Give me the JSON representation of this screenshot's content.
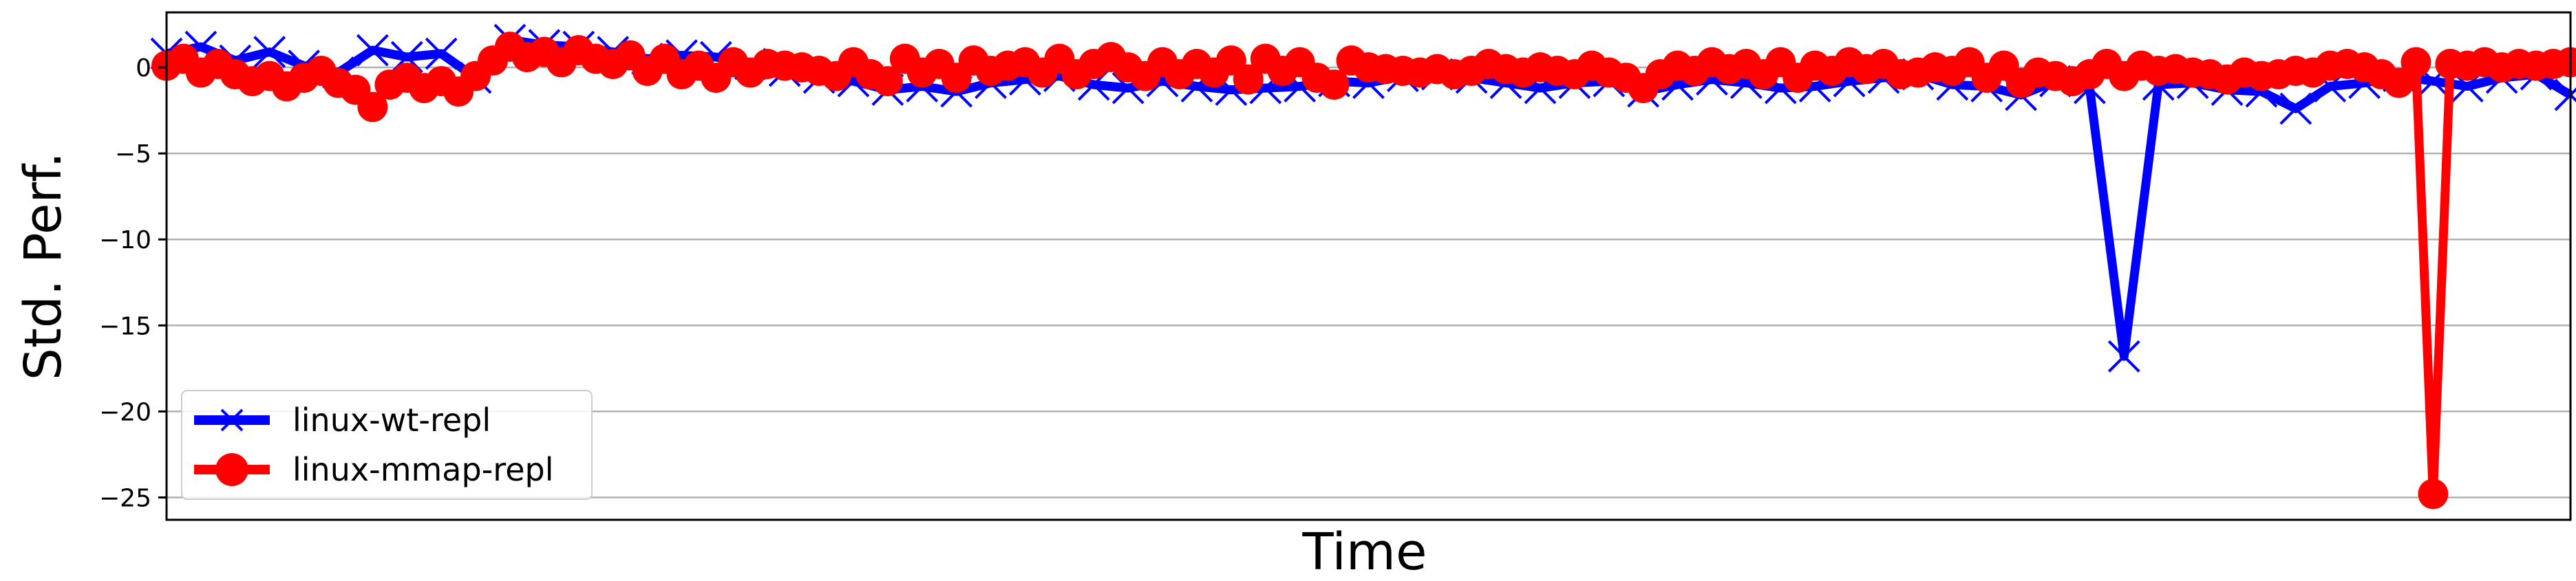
{
  "chart_data": {
    "type": "line",
    "title": "",
    "xlabel": "Time",
    "ylabel": "Std. Perf.",
    "ylim": [
      -26.3,
      3.2
    ],
    "yticks": [
      0,
      -5,
      -10,
      -15,
      -20,
      -25
    ],
    "ytick_labels": [
      "0",
      "−5",
      "−10",
      "−15",
      "−20",
      "−25"
    ],
    "grid": "horizontal",
    "legend_position": "lower-left",
    "x_count": 140,
    "series": [
      {
        "name": "linux-wt-repl",
        "color": "#0000ff",
        "marker": "x",
        "x": [
          0,
          2,
          4,
          6,
          8,
          10,
          12,
          14,
          16,
          18,
          20,
          22,
          24,
          26,
          28,
          30,
          32,
          34,
          36,
          38,
          40,
          42,
          44,
          46,
          48,
          50,
          52,
          54,
          56,
          58,
          60,
          62,
          64,
          66,
          68,
          70,
          72,
          74,
          76,
          78,
          80,
          82,
          84,
          86,
          88,
          90,
          92,
          94,
          96,
          98,
          100,
          102,
          104,
          106,
          108,
          110,
          112,
          114,
          116,
          118,
          120,
          122,
          124,
          126,
          128,
          130,
          132,
          134,
          136,
          138,
          140
        ],
        "values": [
          0.8,
          1.2,
          0.4,
          0.9,
          0.1,
          -0.3,
          1.0,
          0.6,
          0.8,
          -0.6,
          1.6,
          1.3,
          1.2,
          0.9,
          0.5,
          0.7,
          0.6,
          0.2,
          -0.2,
          -0.6,
          -0.8,
          -1.3,
          -1.1,
          -1.4,
          -0.9,
          -0.7,
          -0.5,
          -1.0,
          -1.2,
          -0.8,
          -1.1,
          -1.3,
          -1.2,
          -1.1,
          -0.8,
          -0.9,
          -0.5,
          -0.4,
          -0.6,
          -0.9,
          -1.2,
          -0.9,
          -0.8,
          -1.4,
          -1.0,
          -0.7,
          -0.9,
          -1.2,
          -1.1,
          -0.8,
          -0.6,
          -0.4,
          -1.0,
          -1.1,
          -1.6,
          -0.8,
          -1.2,
          -16.8,
          -1.0,
          -0.9,
          -1.3,
          -1.4,
          -2.4,
          -1.1,
          -0.9,
          -0.5,
          -0.8,
          -1.1,
          -0.6,
          -0.4,
          -1.6
        ]
      },
      {
        "name": "linux-mmap-repl",
        "color": "#ff0000",
        "marker": "o",
        "x": [
          0,
          1,
          2,
          3,
          4,
          5,
          6,
          7,
          8,
          9,
          10,
          11,
          12,
          13,
          14,
          15,
          16,
          17,
          18,
          19,
          20,
          21,
          22,
          23,
          24,
          25,
          26,
          27,
          28,
          29,
          30,
          31,
          32,
          33,
          34,
          35,
          36,
          37,
          38,
          39,
          40,
          41,
          42,
          43,
          44,
          45,
          46,
          47,
          48,
          49,
          50,
          51,
          52,
          53,
          54,
          55,
          56,
          57,
          58,
          59,
          60,
          61,
          62,
          63,
          64,
          65,
          66,
          67,
          68,
          69,
          70,
          71,
          72,
          73,
          74,
          75,
          76,
          77,
          78,
          79,
          80,
          81,
          82,
          83,
          84,
          85,
          86,
          87,
          88,
          89,
          90,
          91,
          92,
          93,
          94,
          95,
          96,
          97,
          98,
          99,
          100,
          101,
          102,
          103,
          104,
          105,
          106,
          107,
          108,
          109,
          110,
          111,
          112,
          113,
          114,
          115,
          116,
          117,
          118,
          119,
          120,
          121,
          122,
          123,
          124,
          125,
          126,
          127,
          128,
          129,
          130,
          131,
          132,
          133,
          134,
          135,
          136,
          137,
          138,
          139,
          140
        ],
        "values": [
          0.1,
          0.5,
          -0.3,
          0.2,
          -0.4,
          -0.8,
          -0.5,
          -1.1,
          -0.6,
          -0.2,
          -0.9,
          -1.3,
          -2.3,
          -1.0,
          -0.6,
          -1.2,
          -0.8,
          -1.4,
          -0.5,
          0.4,
          1.2,
          0.6,
          0.9,
          0.3,
          1.0,
          0.5,
          0.2,
          0.7,
          -0.2,
          0.5,
          -0.4,
          0.1,
          -0.6,
          0.3,
          -0.3,
          0.2,
          0.1,
          0.0,
          -0.2,
          -0.5,
          0.3,
          -0.4,
          -0.8,
          0.5,
          -0.3,
          0.2,
          -0.6,
          0.4,
          -0.2,
          0.1,
          0.3,
          -0.3,
          0.5,
          -0.4,
          0.2,
          0.6,
          0.0,
          -0.5,
          0.3,
          -0.4,
          0.2,
          -0.3,
          0.4,
          -0.7,
          0.5,
          -0.2,
          0.3,
          -0.6,
          -1.0,
          0.4,
          0.0,
          -0.1,
          -0.2,
          -0.3,
          -0.1,
          -0.4,
          -0.2,
          0.2,
          -0.1,
          -0.3,
          0.0,
          -0.2,
          -0.4,
          0.1,
          -0.3,
          -0.6,
          -1.2,
          -0.4,
          0.1,
          -0.2,
          0.3,
          -0.1,
          0.2,
          -0.4,
          0.3,
          -0.6,
          0.1,
          -0.2,
          0.3,
          -0.1,
          0.2,
          -0.4,
          -0.3,
          0.0,
          -0.2,
          0.3,
          -0.6,
          0.1,
          -0.9,
          -0.3,
          -0.5,
          -0.8,
          -0.4,
          0.2,
          -0.5,
          0.1,
          -0.2,
          -0.1,
          -0.3,
          -0.4,
          -0.7,
          -0.3,
          -0.5,
          -0.4,
          -0.2,
          -0.3,
          0.1,
          0.2,
          0.0,
          -0.4,
          -0.9,
          0.3,
          -24.8,
          0.2,
          0.1,
          0.3,
          0.0,
          0.2,
          0.1,
          0.2,
          0.3
        ]
      }
    ]
  }
}
